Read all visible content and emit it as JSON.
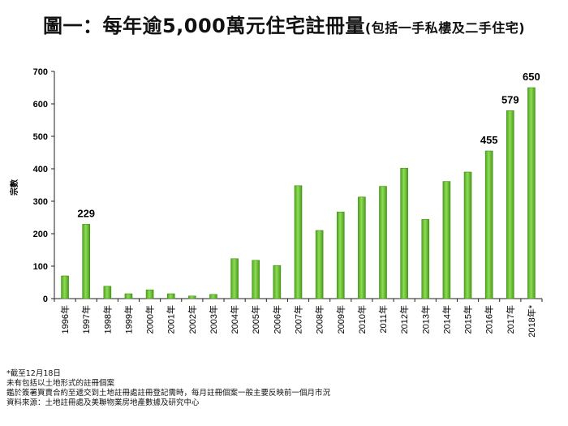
{
  "title": {
    "main": "圖一：每年逾5,000萬元住宅註冊量",
    "sub": "(包括一手私樓及二手住宅)"
  },
  "chart_data": {
    "type": "bar",
    "ylabel": "宗數",
    "ylim": [
      0,
      700
    ],
    "yticks": [
      0,
      100,
      200,
      300,
      400,
      500,
      600,
      700
    ],
    "grid": false,
    "categories": [
      "1996年",
      "1997年",
      "1998年",
      "1999年",
      "2000年",
      "2001年",
      "2002年",
      "2003年",
      "2004年",
      "2005年",
      "2006年",
      "2007年",
      "2008年",
      "2009年",
      "2010年",
      "2011年",
      "2012年",
      "2013年",
      "2014年",
      "2015年",
      "2016年",
      "2017年",
      "2018年*"
    ],
    "series": [
      {
        "values": [
          70,
          229,
          38,
          15,
          27,
          15,
          8,
          13,
          123,
          118,
          102,
          348,
          210,
          267,
          313,
          346,
          402,
          244,
          361,
          390,
          455,
          579,
          650
        ]
      }
    ],
    "data_labels": [
      {
        "index": 1,
        "text": "229"
      },
      {
        "index": 20,
        "text": "455"
      },
      {
        "index": 21,
        "text": "579"
      },
      {
        "index": 22,
        "text": "650"
      }
    ],
    "bar_color": "#6ec531",
    "bar_edge_color": "#3f8f16"
  },
  "notes": [
    "*截至12月18日",
    "未有包括以土地形式的註冊個案",
    "鑑於簽署買賣合約至遞交到土地註冊處註冊登記需時，每月註冊個案一般主要反映前一個月市況",
    "資料來源：土地註冊處及美聯物業房地產數據及研究中心"
  ]
}
